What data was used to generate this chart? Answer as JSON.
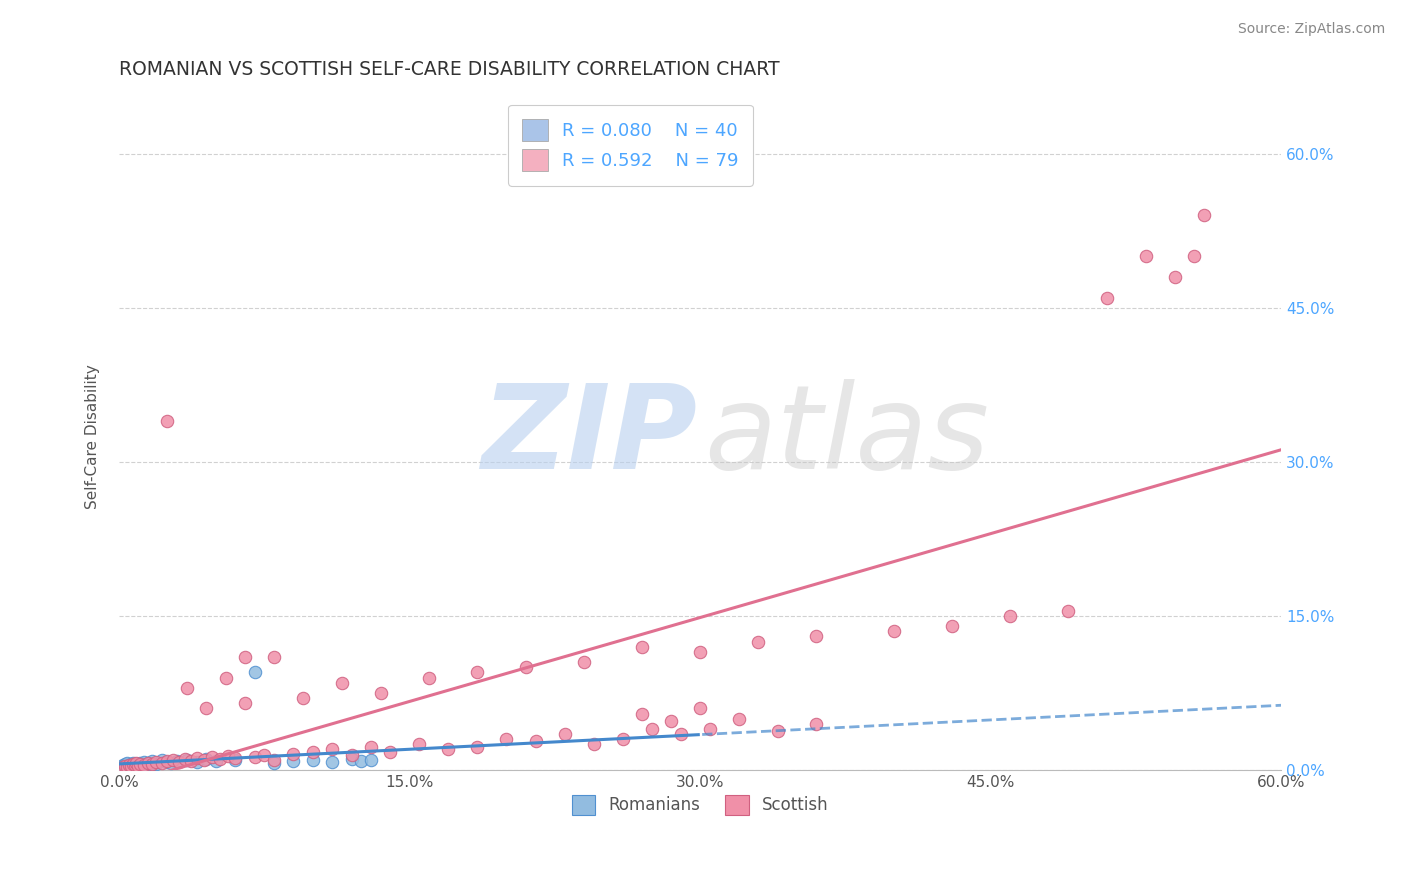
{
  "title": "ROMANIAN VS SCOTTISH SELF-CARE DISABILITY CORRELATION CHART",
  "source_text": "Source: ZipAtlas.com",
  "ylabel": "Self-Care Disability",
  "xlim": [
    0.0,
    0.6
  ],
  "ylim": [
    0.0,
    0.65
  ],
  "xtick_labels": [
    "0.0%",
    "15.0%",
    "30.0%",
    "45.0%",
    "60.0%"
  ],
  "xtick_vals": [
    0.0,
    0.15,
    0.3,
    0.45,
    0.6
  ],
  "ytick_labels_right": [
    "0.0%",
    "15.0%",
    "30.0%",
    "45.0%",
    "60.0%"
  ],
  "ytick_vals": [
    0.0,
    0.15,
    0.3,
    0.45,
    0.6
  ],
  "legend_entries": [
    {
      "label": "Romanians",
      "R": "0.080",
      "N": "40",
      "color": "#aac4e8"
    },
    {
      "label": "Scottish",
      "R": "0.592",
      "N": "79",
      "color": "#f4b0c0"
    }
  ],
  "romanians_x": [
    0.001,
    0.002,
    0.002,
    0.003,
    0.003,
    0.004,
    0.004,
    0.005,
    0.005,
    0.006,
    0.006,
    0.007,
    0.007,
    0.008,
    0.009,
    0.01,
    0.011,
    0.012,
    0.013,
    0.014,
    0.015,
    0.017,
    0.019,
    0.022,
    0.024,
    0.027,
    0.03,
    0.035,
    0.04,
    0.045,
    0.05,
    0.06,
    0.07,
    0.08,
    0.09,
    0.1,
    0.11,
    0.12,
    0.125,
    0.13
  ],
  "romanians_y": [
    0.003,
    0.002,
    0.005,
    0.003,
    0.006,
    0.004,
    0.007,
    0.003,
    0.005,
    0.004,
    0.006,
    0.005,
    0.007,
    0.004,
    0.006,
    0.005,
    0.007,
    0.006,
    0.008,
    0.005,
    0.007,
    0.009,
    0.006,
    0.01,
    0.008,
    0.007,
    0.009,
    0.01,
    0.008,
    0.011,
    0.009,
    0.01,
    0.095,
    0.007,
    0.009,
    0.01,
    0.008,
    0.011,
    0.009,
    0.01
  ],
  "scottish_x": [
    0.002,
    0.003,
    0.004,
    0.005,
    0.006,
    0.007,
    0.008,
    0.009,
    0.01,
    0.011,
    0.013,
    0.015,
    0.017,
    0.019,
    0.022,
    0.025,
    0.028,
    0.031,
    0.034,
    0.037,
    0.04,
    0.044,
    0.048,
    0.052,
    0.056,
    0.06,
    0.065,
    0.07,
    0.075,
    0.08,
    0.09,
    0.1,
    0.11,
    0.12,
    0.13,
    0.14,
    0.155,
    0.17,
    0.185,
    0.2,
    0.215,
    0.23,
    0.245,
    0.26,
    0.275,
    0.29,
    0.305,
    0.32,
    0.34,
    0.36,
    0.27,
    0.285,
    0.3,
    0.025,
    0.035,
    0.045,
    0.055,
    0.065,
    0.08,
    0.095,
    0.115,
    0.135,
    0.16,
    0.185,
    0.21,
    0.24,
    0.27,
    0.3,
    0.33,
    0.36,
    0.4,
    0.43,
    0.46,
    0.49,
    0.51,
    0.53,
    0.545,
    0.555,
    0.56
  ],
  "scottish_y": [
    0.003,
    0.004,
    0.003,
    0.005,
    0.004,
    0.006,
    0.005,
    0.007,
    0.004,
    0.006,
    0.005,
    0.007,
    0.006,
    0.008,
    0.007,
    0.009,
    0.01,
    0.008,
    0.011,
    0.009,
    0.012,
    0.01,
    0.013,
    0.011,
    0.014,
    0.012,
    0.11,
    0.013,
    0.015,
    0.11,
    0.016,
    0.018,
    0.02,
    0.015,
    0.022,
    0.018,
    0.025,
    0.02,
    0.022,
    0.03,
    0.028,
    0.035,
    0.025,
    0.03,
    0.04,
    0.035,
    0.04,
    0.05,
    0.038,
    0.045,
    0.055,
    0.048,
    0.06,
    0.34,
    0.08,
    0.06,
    0.09,
    0.065,
    0.01,
    0.07,
    0.085,
    0.075,
    0.09,
    0.095,
    0.1,
    0.105,
    0.12,
    0.115,
    0.125,
    0.13,
    0.135,
    0.14,
    0.15,
    0.155,
    0.46,
    0.5,
    0.48,
    0.5,
    0.54
  ],
  "title_color": "#333333",
  "source_color": "#888888",
  "axis_label_color": "#555555",
  "tick_color": "#555555",
  "right_tick_color": "#4da6ff",
  "grid_color": "#cccccc",
  "romanians_dot_color": "#92bce0",
  "romanians_dot_edge": "#5090d0",
  "scottish_dot_color": "#f090a8",
  "scottish_dot_edge": "#d06080",
  "romanians_line_color": "#4488cc",
  "scottish_line_color": "#e07090",
  "watermark_zip_color": "#b8d0ef",
  "watermark_atlas_color": "#c8c8c8",
  "legend_text_color": "#4da6ff"
}
